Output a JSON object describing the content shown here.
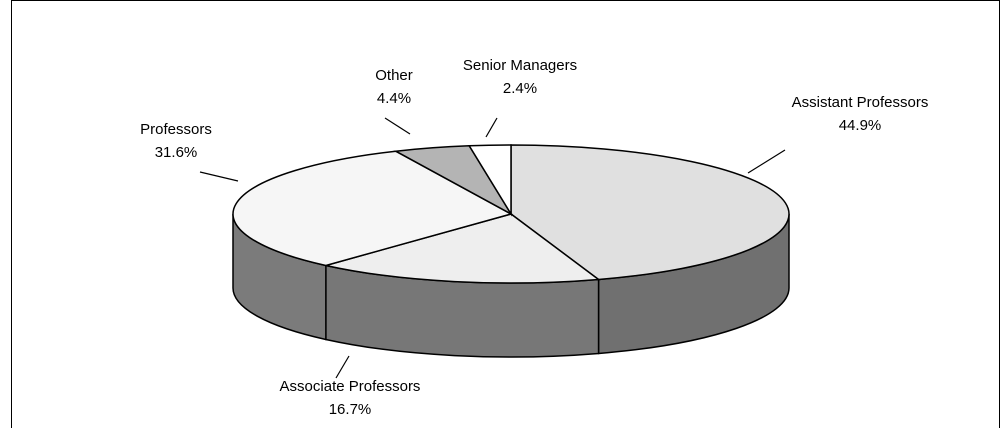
{
  "chart_data": {
    "type": "pie",
    "categories": [
      "Assistant Professors",
      "Associate Professors",
      "Professors",
      "Other",
      "Senior Managers"
    ],
    "values": [
      44.9,
      16.7,
      31.6,
      4.4,
      2.4
    ],
    "value_labels": [
      "44.9%",
      "16.7%",
      "31.6%",
      "4.4%",
      "2.4%"
    ],
    "colors": [
      "#e0e0e0",
      "#eeeeee",
      "#f6f6f6",
      "#b4b4b4",
      "#ffffff"
    ]
  }
}
